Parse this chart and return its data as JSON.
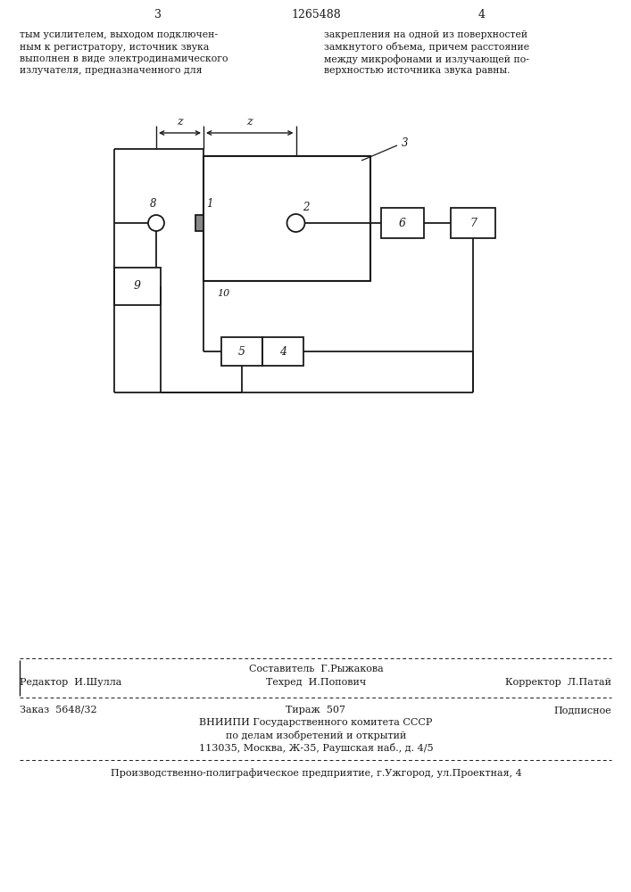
{
  "bg_color": "#ffffff",
  "line_color": "#1a1a1a",
  "text_color": "#1a1a1a",
  "page_number_left": "3",
  "page_number_center": "1265488",
  "page_number_right": "4",
  "top_text_left_lines": [
    "тым усилителем, выходом подключен-",
    "ным к регистратору, источник звука",
    "выполнен в виде электродинамического",
    "излучателя, предназначенного для"
  ],
  "top_text_right_lines": [
    "закрепления на одной из поверхностей",
    "замкнутого объема, причем расстояние",
    "между микрофонами и излучающей по-",
    "верхностью источника звука равны."
  ],
  "footer_editor": "Редактор  И.Шулла",
  "footer_composer": "Составитель  Г.Рыжакова",
  "footer_techred": "Техред  И.Попович",
  "footer_corrector": "Корректор  Л.Патай",
  "footer_order": "Заказ  5648/32",
  "footer_tirage": "Тираж  507",
  "footer_podpisnoe": "Подписное",
  "footer_vniiipi": "ВНИИПИ Государственного комитета СССР",
  "footer_deals": "по делам изобретений и открытий",
  "footer_address": "113035, Москва, Ж-35, Раушская наб., д. 4/5",
  "footer_company": "Производственно-полиграфическое предприятие, г.Ужгород, ул.Проектная, 4"
}
